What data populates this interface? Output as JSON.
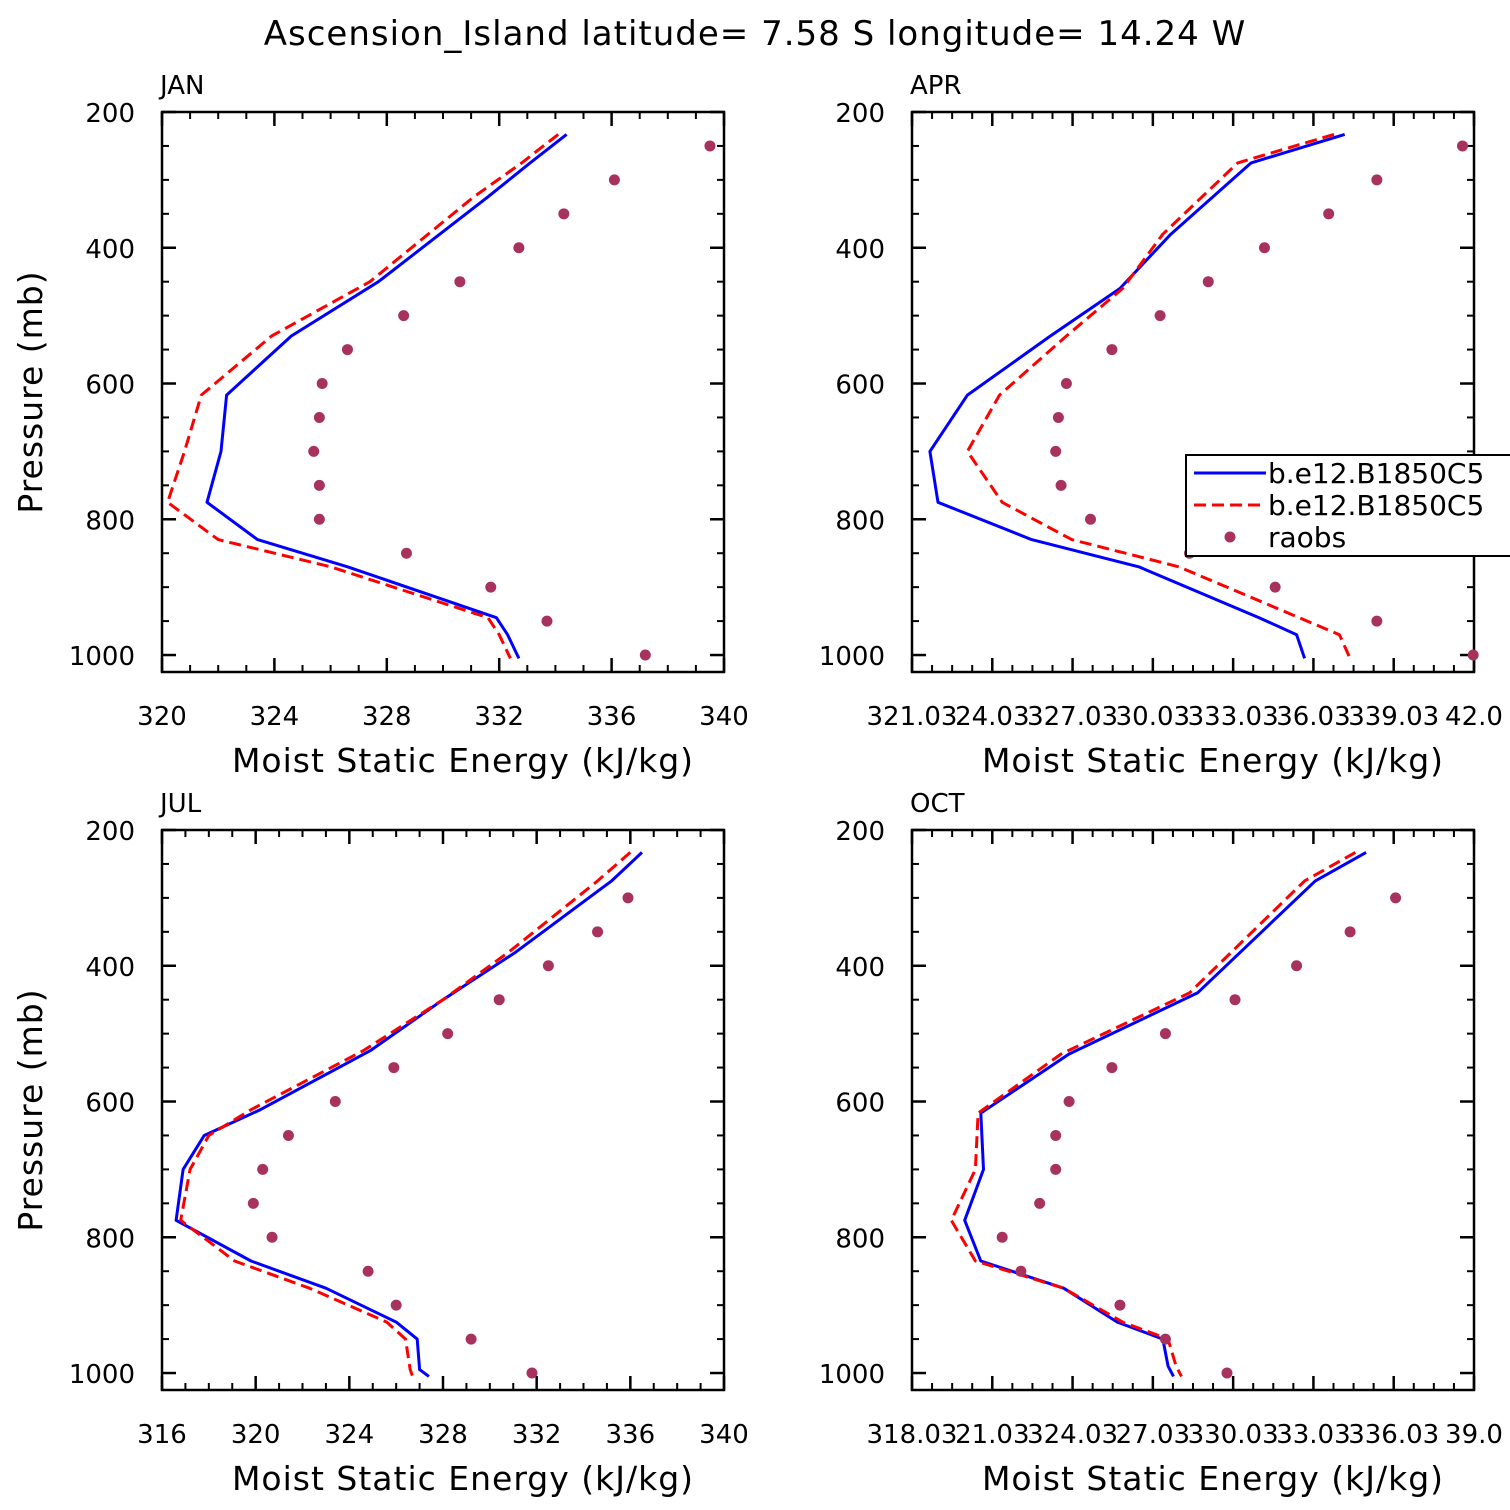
{
  "figure": {
    "title": "Ascension_Island  latitude= 7.58 S longitude= 14.24 W"
  },
  "chart_data": [
    {
      "type": "line",
      "panel": "JAN",
      "xlabel": "Moist Static Energy (kJ/kg)",
      "ylabel": "Pressure (mb)",
      "xlim": [
        320,
        340
      ],
      "ylim": [
        1025,
        200
      ],
      "xticks": [
        "320",
        "324",
        "328",
        "332",
        "336",
        "340"
      ],
      "xtick_values": [
        320,
        324,
        328,
        332,
        336,
        340
      ],
      "yticks": [
        "200",
        "400",
        "600",
        "800",
        "1000"
      ],
      "ytick_values": [
        200,
        400,
        600,
        800,
        1000
      ],
      "series": [
        {
          "values_x": [
            334.4,
            333.1,
            331.6,
            327.7,
            324.6,
            322.3,
            322.1,
            321.6,
            323.4,
            326.6,
            331.9,
            332.3,
            332.7
          ],
          "values_y": [
            233,
            275,
            325,
            450,
            530,
            617,
            700,
            775,
            830,
            870,
            945,
            970,
            1005
          ],
          "style": "solid",
          "color": "#0000ff"
        },
        {
          "values_x": [
            334.1,
            332.8,
            331.1,
            327.4,
            323.9,
            321.4,
            320.8,
            320.2,
            322.0,
            326.0,
            331.6,
            332.0,
            332.4
          ],
          "values_y": [
            233,
            275,
            325,
            450,
            530,
            617,
            700,
            775,
            830,
            870,
            945,
            970,
            1005
          ],
          "style": "dashed",
          "color": "#ff0000"
        }
      ],
      "raobs": {
        "x": [
          339.5,
          336.1,
          334.3,
          332.7,
          330.6,
          328.6,
          326.6,
          325.7,
          325.6,
          325.4,
          325.6,
          325.6,
          328.7,
          331.7,
          333.7,
          337.2
        ],
        "y": [
          250,
          300,
          350,
          400,
          450,
          500,
          550,
          600,
          650,
          700,
          750,
          800,
          850,
          900,
          950,
          1000
        ],
        "color": "#a8325e"
      },
      "legend": null
    },
    {
      "type": "line",
      "panel": "APR",
      "xlabel": "Moist Static Energy (kJ/kg)",
      "ylabel": "",
      "xlim": [
        321.03,
        342.03
      ],
      "ylim": [
        1025,
        200
      ],
      "xticks": [
        "321.03",
        "24.03",
        "327.03",
        "30.03",
        "333.03",
        "36.03",
        "339.03",
        "42.0"
      ],
      "xtick_values": [
        321.03,
        324.03,
        327.03,
        330.03,
        333.03,
        336.03,
        339.03,
        342.03
      ],
      "yticks": [
        "200",
        "400",
        "600",
        "800",
        "1000"
      ],
      "ytick_values": [
        200,
        400,
        600,
        800,
        1000
      ],
      "series": [
        {
          "values_x": [
            337.2,
            333.7,
            330.7,
            328.8,
            326.2,
            323.1,
            321.7,
            322.0,
            325.5,
            329.5,
            334.0,
            335.4,
            335.7
          ],
          "values_y": [
            233,
            275,
            380,
            460,
            530,
            617,
            700,
            775,
            830,
            870,
            945,
            970,
            1005
          ],
          "style": "solid",
          "color": "#0000ff"
        },
        {
          "values_x": [
            336.8,
            333.2,
            330.4,
            328.9,
            326.8,
            324.3,
            323.1,
            324.4,
            327.0,
            331.0,
            335.5,
            337.0,
            337.4
          ],
          "values_y": [
            233,
            275,
            380,
            460,
            530,
            617,
            700,
            775,
            830,
            870,
            945,
            970,
            1005
          ],
          "style": "dashed",
          "color": "#ff0000"
        }
      ],
      "raobs": {
        "x": [
          341.6,
          338.4,
          336.6,
          334.2,
          332.1,
          330.3,
          328.5,
          326.8,
          326.5,
          326.4,
          326.6,
          327.7,
          331.4,
          334.6,
          338.4,
          342.0
        ],
        "y": [
          250,
          300,
          350,
          400,
          450,
          500,
          550,
          600,
          650,
          700,
          750,
          800,
          850,
          900,
          950,
          1000
        ],
        "color": "#a8325e"
      },
      "legend": {
        "entries": [
          "b.e12.B1850C5",
          "b.e12.B1850C5",
          "raobs"
        ]
      }
    },
    {
      "type": "line",
      "panel": "JUL",
      "xlabel": "Moist Static Energy (kJ/kg)",
      "ylabel": "Pressure (mb)",
      "xlim": [
        316,
        340
      ],
      "ylim": [
        1025,
        200
      ],
      "xticks": [
        "316",
        "320",
        "324",
        "328",
        "332",
        "336",
        "340"
      ],
      "xtick_values": [
        316,
        320,
        324,
        328,
        332,
        336,
        340
      ],
      "yticks": [
        "200",
        "400",
        "600",
        "800",
        "1000"
      ],
      "ytick_values": [
        200,
        400,
        600,
        800,
        1000
      ],
      "series": [
        {
          "values_x": [
            336.5,
            335.2,
            331.1,
            328.0,
            324.9,
            320.2,
            317.8,
            316.9,
            316.6,
            319.8,
            323.0,
            326.0,
            326.9,
            327.0,
            327.4
          ],
          "values_y": [
            233,
            275,
            380,
            450,
            525,
            612,
            650,
            700,
            775,
            835,
            875,
            925,
            950,
            995,
            1005
          ],
          "style": "solid",
          "color": "#0000ff"
        },
        {
          "values_x": [
            336.0,
            334.6,
            330.8,
            328.0,
            324.6,
            319.8,
            318.0,
            317.2,
            316.8,
            319.1,
            322.3,
            325.6,
            326.4,
            326.6,
            326.7
          ],
          "values_y": [
            233,
            275,
            380,
            450,
            525,
            612,
            650,
            700,
            775,
            835,
            875,
            925,
            950,
            995,
            1005
          ],
          "style": "dashed",
          "color": "#ff0000"
        }
      ],
      "raobs": {
        "x": [
          335.9,
          334.6,
          332.5,
          330.4,
          328.2,
          325.9,
          323.4,
          321.4,
          320.3,
          319.9,
          320.7,
          324.8,
          326.0,
          329.2,
          331.8
        ],
        "y": [
          300,
          350,
          400,
          450,
          500,
          550,
          600,
          650,
          700,
          750,
          800,
          850,
          900,
          950,
          1000
        ],
        "color": "#a8325e"
      },
      "legend": null
    },
    {
      "type": "line",
      "panel": "OCT",
      "xlabel": "Moist Static Energy (kJ/kg)",
      "ylabel": "",
      "xlim": [
        318.03,
        339.03
      ],
      "ylim": [
        1025,
        200
      ],
      "xticks": [
        "318.03",
        "21.03",
        "324.03",
        "27.03",
        "330.03",
        "33.03",
        "336.03",
        "39.0"
      ],
      "xtick_values": [
        318.03,
        321.03,
        324.03,
        327.03,
        330.03,
        333.03,
        336.03,
        339.03
      ],
      "yticks": [
        "200",
        "400",
        "600",
        "800",
        "1000"
      ],
      "ytick_values": [
        200,
        400,
        600,
        800,
        1000
      ],
      "series": [
        {
          "values_x": [
            335.0,
            333.1,
            328.7,
            323.9,
            320.6,
            320.7,
            320.0,
            320.6,
            323.7,
            325.7,
            327.4,
            327.6,
            327.8
          ],
          "values_y": [
            233,
            275,
            440,
            530,
            617,
            700,
            775,
            835,
            875,
            925,
            950,
            990,
            1005
          ],
          "style": "solid",
          "color": "#0000ff"
        },
        {
          "values_x": [
            334.6,
            332.7,
            328.4,
            323.6,
            320.5,
            320.4,
            319.5,
            320.4,
            323.7,
            325.9,
            327.6,
            327.9,
            328.1
          ],
          "values_y": [
            233,
            275,
            440,
            530,
            617,
            700,
            775,
            835,
            875,
            925,
            950,
            990,
            1005
          ],
          "style": "dashed",
          "color": "#ff0000"
        }
      ],
      "raobs": {
        "x": [
          336.1,
          334.4,
          332.4,
          330.1,
          327.5,
          325.5,
          323.9,
          323.4,
          323.4,
          322.8,
          321.4,
          322.1,
          325.8,
          327.5,
          329.8
        ],
        "y": [
          300,
          350,
          400,
          450,
          500,
          550,
          600,
          650,
          700,
          750,
          800,
          850,
          900,
          950,
          1000
        ],
        "color": "#a8325e"
      },
      "legend": null
    }
  ]
}
